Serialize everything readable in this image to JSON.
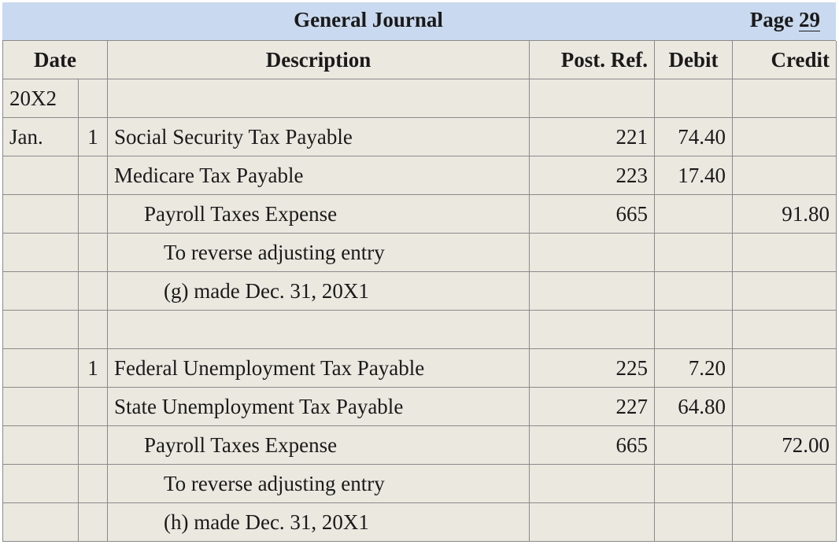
{
  "header": {
    "title": "General Journal",
    "page_label": "Page",
    "page_number": "29"
  },
  "columns": {
    "date": "Date",
    "description": "Description",
    "post_ref": "Post. Ref.",
    "debit": "Debit",
    "credit": "Credit"
  },
  "rows": [
    {
      "month": "20X2",
      "day": "",
      "description": "",
      "post_ref": "",
      "debit": "",
      "credit": ""
    },
    {
      "month": "Jan.",
      "day": "1",
      "description": "Social Security Tax Payable",
      "post_ref": "221",
      "debit": "74.40",
      "credit": ""
    },
    {
      "month": "",
      "day": "",
      "description": "Medicare Tax Payable",
      "post_ref": "223",
      "debit": "17.40",
      "credit": ""
    },
    {
      "month": "",
      "day": "",
      "description": "Payroll Taxes Expense",
      "post_ref": "665",
      "debit": "",
      "credit": "91.80"
    },
    {
      "month": "",
      "day": "",
      "description": "To reverse adjusting entry",
      "post_ref": "",
      "debit": "",
      "credit": ""
    },
    {
      "month": "",
      "day": "",
      "description": "(g) made Dec. 31, 20X1",
      "post_ref": "",
      "debit": "",
      "credit": ""
    },
    {
      "month": "",
      "day": "",
      "description": "",
      "post_ref": "",
      "debit": "",
      "credit": ""
    },
    {
      "month": "",
      "day": "1",
      "description": "Federal Unemployment Tax Payable",
      "post_ref": "225",
      "debit": "7.20",
      "credit": ""
    },
    {
      "month": "",
      "day": "",
      "description": "State Unemployment Tax Payable",
      "post_ref": "227",
      "debit": "64.80",
      "credit": ""
    },
    {
      "month": "",
      "day": "",
      "description": "Payroll Taxes Expense",
      "post_ref": "665",
      "debit": "",
      "credit": "72.00"
    },
    {
      "month": "",
      "day": "",
      "description": "To reverse adjusting entry",
      "post_ref": "",
      "debit": "",
      "credit": ""
    },
    {
      "month": "",
      "day": "",
      "description": "(h) made Dec. 31, 20X1",
      "post_ref": "",
      "debit": "",
      "credit": ""
    }
  ]
}
